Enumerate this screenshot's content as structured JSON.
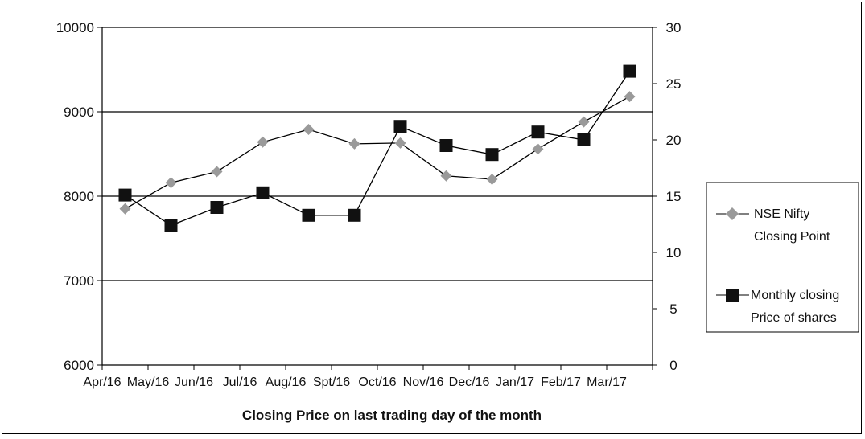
{
  "chart_data": {
    "type": "line",
    "categories": [
      "Apr/16",
      "May/16",
      "Jun/16",
      "Jul/16",
      "Aug/16",
      "Spt/16",
      "Oct/16",
      "Nov/16",
      "Dec/16",
      "Jan/17",
      "Feb/17",
      "Mar/17"
    ],
    "xlabel": "Closing Price on last trading day of the month",
    "y_left": {
      "ylim": [
        6000,
        10000
      ],
      "ticks": [
        6000,
        7000,
        8000,
        9000,
        10000
      ]
    },
    "y_right": {
      "ylim": [
        0,
        30
      ],
      "ticks": [
        0,
        5,
        10,
        15,
        20,
        25,
        30
      ]
    },
    "grid": "horizontal",
    "legend_position": "right",
    "series": [
      {
        "name": "NSE Nifty Closing Point",
        "axis": "left",
        "marker": "diamond",
        "color": "#9a9a9a",
        "line_color": "#000000",
        "values": [
          7850,
          8160,
          8290,
          8640,
          8790,
          8620,
          8630,
          8240,
          8200,
          8560,
          8880,
          9180
        ]
      },
      {
        "name": "Monthly closing Price of shares",
        "axis": "right",
        "marker": "square",
        "color": "#111111",
        "line_color": "#000000",
        "values": [
          15.1,
          12.4,
          14.0,
          15.3,
          13.3,
          13.3,
          21.2,
          19.5,
          18.7,
          20.7,
          20.0,
          26.1
        ]
      }
    ]
  },
  "legend": {
    "items": [
      {
        "line1": "NSE Nifty",
        "line2": "Closing Point"
      },
      {
        "line1": "Monthly closing",
        "line2": "Price of shares"
      }
    ]
  }
}
